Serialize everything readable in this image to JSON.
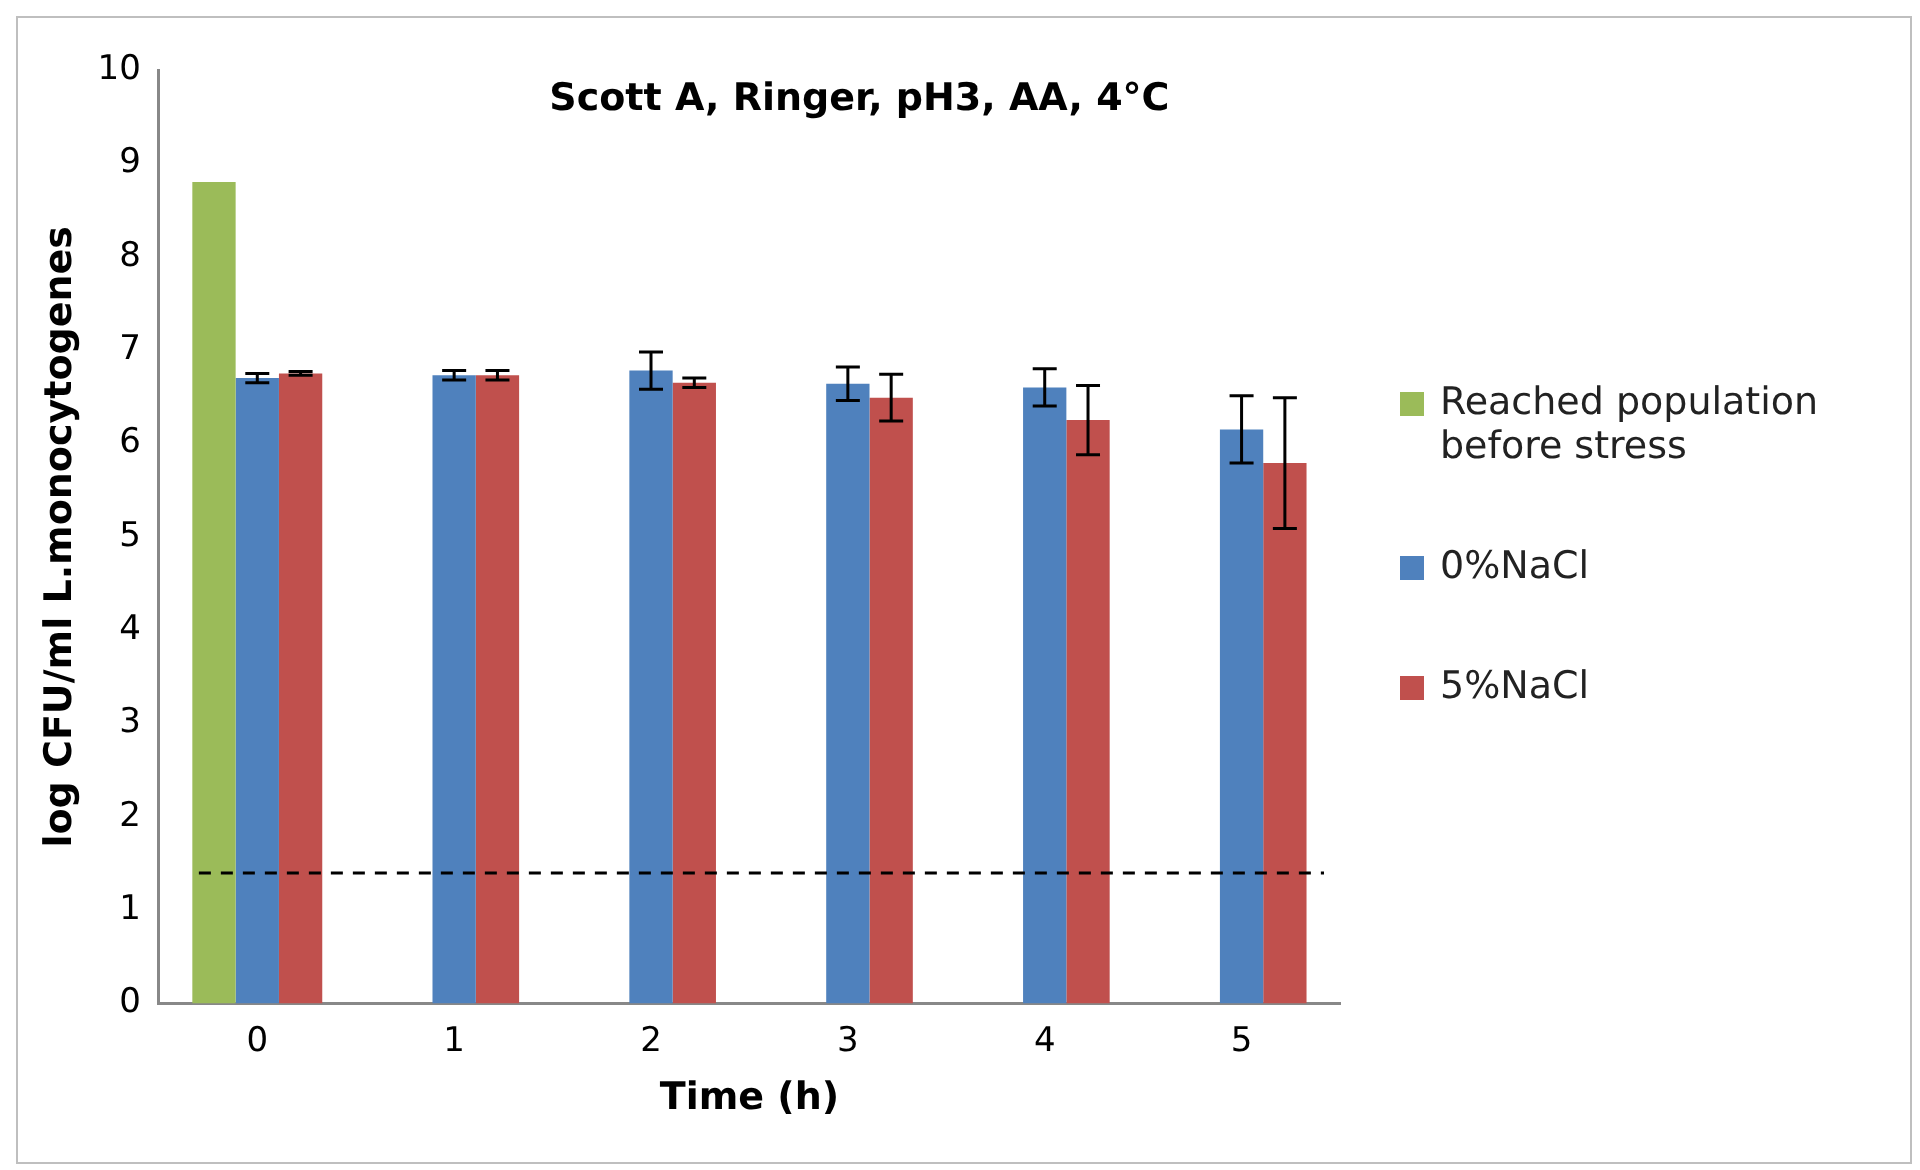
{
  "chart_data": {
    "type": "bar",
    "title": "Scott A, Ringer, pH3, AA, 4°C",
    "xlabel": "Time (h)",
    "ylabel": "log CFU/ml L.monocytogenes",
    "categories": [
      "0",
      "1",
      "2",
      "3",
      "4",
      "5"
    ],
    "series": [
      {
        "name": "Reached population before stress",
        "color": "#9bbb59",
        "values": [
          8.8,
          null,
          null,
          null,
          null,
          null
        ]
      },
      {
        "name": "0%NaCl",
        "color": "#4f81bd",
        "values": [
          6.7,
          6.73,
          6.78,
          6.64,
          6.6,
          6.15
        ],
        "errors": [
          0.05,
          0.05,
          0.2,
          0.18,
          0.2,
          0.36
        ]
      },
      {
        "name": "5%NaCl",
        "color": "#c0504d",
        "values": [
          6.75,
          6.73,
          6.65,
          6.49,
          6.25,
          5.79
        ],
        "errors": [
          0.02,
          0.05,
          0.05,
          0.25,
          0.37,
          0.7
        ]
      }
    ],
    "ylim": [
      0,
      10
    ],
    "yticks": [
      0,
      1,
      2,
      3,
      4,
      5,
      6,
      7,
      8,
      9,
      10
    ],
    "ref_lines": [
      {
        "axis": "y",
        "value": 1.4,
        "color": "#000000",
        "line_style": "dashed"
      }
    ],
    "legend": "right",
    "grid": false
  }
}
